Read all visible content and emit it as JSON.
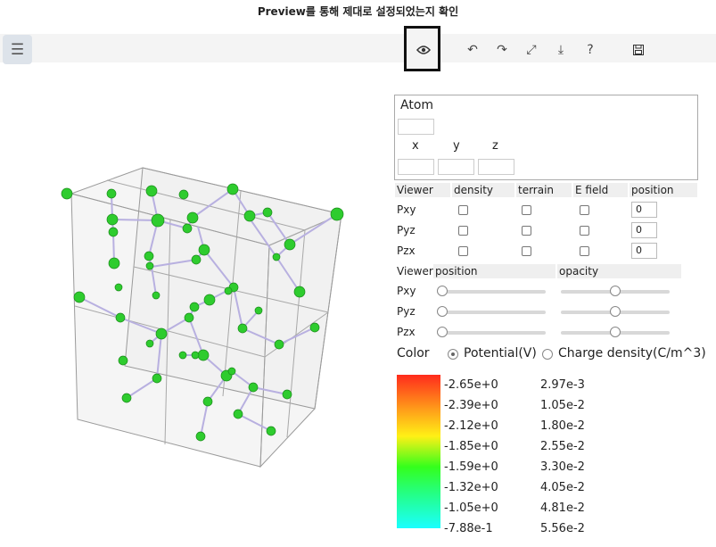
{
  "annotation": "Preview를 통해 제대로 설정되었는지 확인",
  "toolbar": {
    "menu_icon": "menu-icon",
    "icons": [
      "eye-icon",
      "undo-icon",
      "redo-icon",
      "expand-icon",
      "download-icon",
      "help-icon",
      "save-icon"
    ]
  },
  "atom": {
    "title": "Atom",
    "x_label": "x",
    "y_label": "y",
    "z_label": "z"
  },
  "viewer_table": {
    "headers": [
      "Viewer",
      "density",
      "terrain",
      "E field",
      "position"
    ],
    "rows": [
      {
        "label": "Pxy",
        "position": "0"
      },
      {
        "label": "Pyz",
        "position": "0"
      },
      {
        "label": "Pzx",
        "position": "0"
      }
    ]
  },
  "slider_table": {
    "headers": [
      "Viewer",
      "position",
      "opacity"
    ],
    "rows": [
      {
        "label": "Pxy",
        "position": 0.0,
        "opacity": 0.5
      },
      {
        "label": "Pyz",
        "position": 0.0,
        "opacity": 0.5
      },
      {
        "label": "Pzx",
        "position": 0.0,
        "opacity": 0.5
      }
    ]
  },
  "color": {
    "label": "Color",
    "option_potential": "Potential(V)",
    "option_charge": "Charge density(C/m^3)",
    "selected": "potential",
    "potential_values": [
      "-2.65e+0",
      "-2.39e+0",
      "-2.12e+0",
      "-1.85e+0",
      "-1.59e+0",
      "-1.32e+0",
      "-1.05e+0",
      "-7.88e-1"
    ],
    "charge_values": [
      "2.97e-3",
      "1.05e-2",
      "1.80e-2",
      "2.55e-2",
      "3.30e-2",
      "4.05e-2",
      "4.81e-2",
      "5.56e-2"
    ]
  },
  "colors": {
    "atom": "#2ecc2e",
    "bond": "#b8b0e0",
    "edge": "#8a8a8a"
  }
}
